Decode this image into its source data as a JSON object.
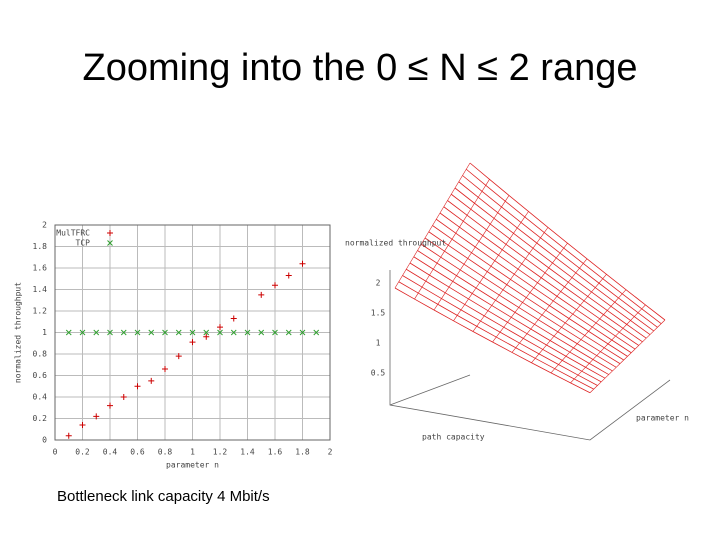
{
  "slide": {
    "title": "Zooming into the 0 ≤ N ≤ 2 range",
    "caption": "Bottleneck link capacity 4 Mbit/s"
  },
  "chart_data": {
    "type": "scatter",
    "x_label": "parameter n",
    "y_label": "normalized throughput",
    "xlim": [
      0,
      2
    ],
    "ylim": [
      0,
      2
    ],
    "xticks": [
      0,
      0.2,
      0.4,
      0.6,
      0.8,
      1,
      1.2,
      1.4,
      1.6,
      1.8,
      2
    ],
    "yticks": [
      0,
      0.2,
      0.4,
      0.6,
      0.8,
      1,
      1.2,
      1.4,
      1.6,
      1.8,
      2
    ],
    "grid": true,
    "legend": "upper left",
    "series": [
      {
        "name": "MulTFRC",
        "color": "#cc0000",
        "marker": "+",
        "x": [
          0.1,
          0.2,
          0.3,
          0.4,
          0.5,
          0.6,
          0.7,
          0.8,
          0.9,
          1.0,
          1.1,
          1.2,
          1.3,
          1.5,
          1.6,
          1.7,
          1.8
        ],
        "values": [
          0.04,
          0.14,
          0.22,
          0.32,
          0.4,
          0.5,
          0.55,
          0.66,
          0.78,
          0.91,
          0.96,
          1.05,
          1.13,
          1.35,
          1.44,
          1.53,
          1.64
        ]
      },
      {
        "name": "TCP",
        "color": "#2e9e2e",
        "marker": "x",
        "x": [
          0.1,
          0.2,
          0.3,
          0.4,
          0.5,
          0.6,
          0.7,
          0.8,
          0.9,
          1.0,
          1.1,
          1.2,
          1.3,
          1.4,
          1.5,
          1.6,
          1.7,
          1.8,
          1.9
        ],
        "values": [
          1,
          1,
          1,
          1,
          1,
          1,
          1,
          1,
          1,
          1,
          1,
          1,
          1,
          1,
          1,
          1,
          1,
          1,
          1
        ]
      }
    ]
  },
  "surface_plot": {
    "z_label": "normalized throughput",
    "x_label": "parameter n",
    "y_label": "path capacity",
    "z_ticks": [
      "2",
      "1.5",
      "1",
      "0.5"
    ]
  }
}
